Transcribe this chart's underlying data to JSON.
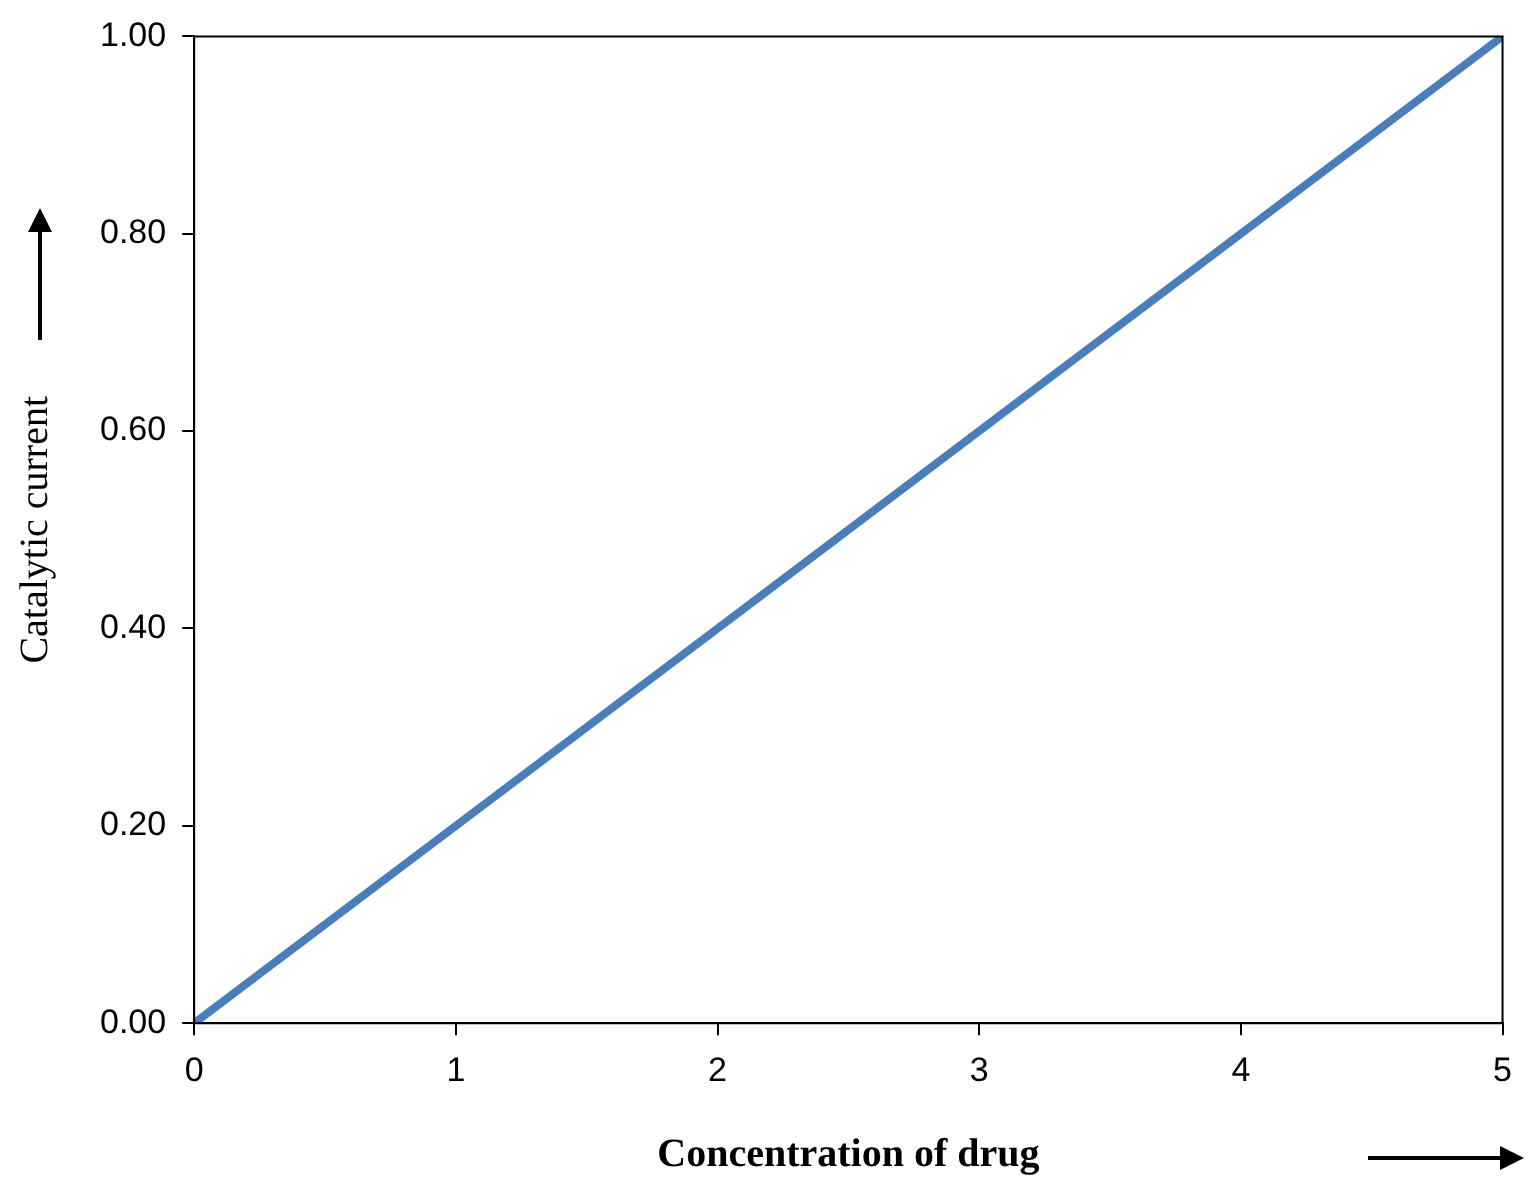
{
  "chart_data": {
    "type": "line",
    "xlabel": "Concentration of drug",
    "ylabel": "Catalytic current",
    "x": [
      0,
      5
    ],
    "series": [
      {
        "color": "#4a7ebb",
        "values": [
          0,
          1
        ]
      }
    ],
    "xlim": [
      0,
      5
    ],
    "ylim": [
      0,
      1
    ],
    "xticks": [
      0,
      1,
      2,
      3,
      4,
      5
    ],
    "yticks": [
      {
        "value": 0,
        "label": "0.00"
      },
      {
        "value": 0.2,
        "label": "0.20"
      },
      {
        "value": 0.4,
        "label": "0.40"
      },
      {
        "value": 0.6,
        "label": "0.60"
      },
      {
        "value": 0.8,
        "label": "0.80"
      },
      {
        "value": 1,
        "label": "1.00"
      }
    ],
    "marker": "none"
  }
}
